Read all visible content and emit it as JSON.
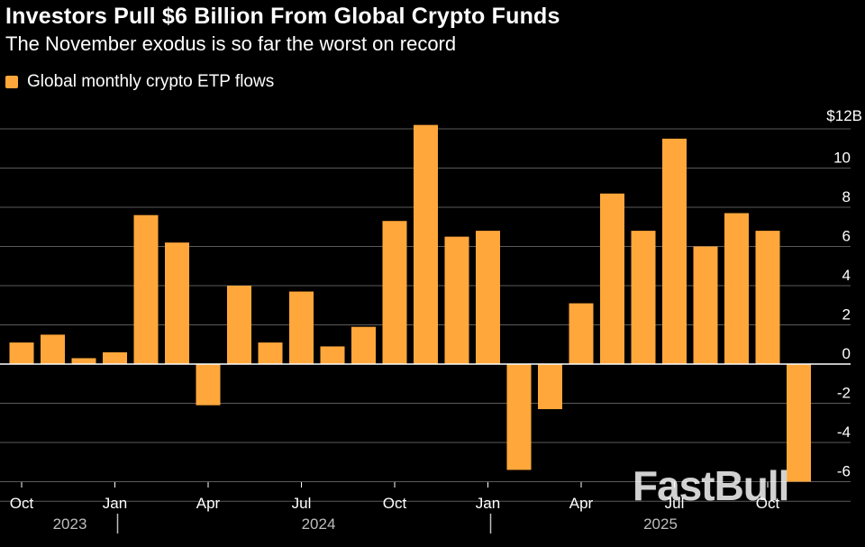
{
  "chart_data": {
    "type": "bar",
    "title": "Investors Pull $6 Billion From Global Crypto Funds",
    "subtitle": "The November exodus is so far the worst on record",
    "legend": "Global monthly crypto ETP flows",
    "color": "#ffa73b",
    "unit_top_label": "$12B",
    "ylim": [
      -7,
      12
    ],
    "yticks": [
      -6,
      -4,
      -2,
      0,
      2,
      4,
      6,
      8,
      10
    ],
    "categories": [
      "Oct 2023",
      "Nov 2023",
      "Dec 2023",
      "Jan 2024",
      "Feb 2024",
      "Mar 2024",
      "Apr 2024",
      "May 2024",
      "Jun 2024",
      "Jul 2024",
      "Aug 2024",
      "Sep 2024",
      "Oct 2024",
      "Nov 2024",
      "Dec 2024",
      "Jan 2025",
      "Feb 2025",
      "Mar 2025",
      "Apr 2025",
      "May 2025",
      "Jun 2025",
      "Jul 2025",
      "Aug 2025",
      "Sep 2025",
      "Oct 2025",
      "Nov 2025"
    ],
    "values": [
      1.1,
      1.5,
      0.3,
      0.6,
      7.6,
      6.2,
      -2.1,
      4.0,
      1.1,
      3.7,
      0.9,
      1.9,
      7.3,
      12.2,
      6.5,
      6.8,
      -5.4,
      -2.3,
      3.1,
      8.7,
      6.8,
      11.5,
      6.0,
      7.7,
      6.8,
      -6.0
    ],
    "xtick_labels": [
      {
        "index": 0,
        "label": "Oct"
      },
      {
        "index": 3,
        "label": "Jan"
      },
      {
        "index": 6,
        "label": "Apr"
      },
      {
        "index": 9,
        "label": "Jul"
      },
      {
        "index": 12,
        "label": "Oct"
      },
      {
        "index": 15,
        "label": "Jan"
      },
      {
        "index": 18,
        "label": "Apr"
      },
      {
        "index": 21,
        "label": "Jul"
      },
      {
        "index": 24,
        "label": "Oct"
      }
    ],
    "year_labels": [
      {
        "label": "2023",
        "center_index": 1
      },
      {
        "label": "2024",
        "center_index": 9
      },
      {
        "label": "2025",
        "center_index": 20
      }
    ],
    "year_separators": [
      3,
      15
    ],
    "grid": true
  },
  "watermark": "FastBull"
}
